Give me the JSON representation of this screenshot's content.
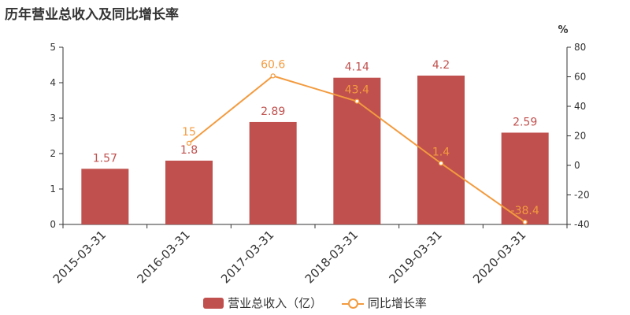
{
  "title": "历年营业总收入及同比增长率",
  "legend": {
    "revenue": "营业总收入（亿）",
    "growth": "同比增长率"
  },
  "colors": {
    "bar": "#c0504d",
    "line": "#f39b3f",
    "axis": "#333333"
  },
  "chart_data": {
    "type": "bar",
    "title": "历年营业总收入及同比增长率",
    "categories": [
      "2015-03-31",
      "2016-03-31",
      "2017-03-31",
      "2018-03-31",
      "2019-03-31",
      "2020-03-31"
    ],
    "series": [
      {
        "name": "营业总收入（亿）",
        "type": "bar",
        "axis": "left",
        "values": [
          1.57,
          1.8,
          2.89,
          4.14,
          4.2,
          2.59
        ]
      },
      {
        "name": "同比增长率",
        "type": "line",
        "axis": "right",
        "values": [
          null,
          15,
          60.6,
          43.4,
          1.4,
          -38.4
        ]
      }
    ],
    "y_left": {
      "lim": [
        0,
        5
      ],
      "ticks": [
        0,
        1,
        2,
        3,
        4,
        5
      ]
    },
    "y_right": {
      "label": "%",
      "lim": [
        -40,
        80
      ],
      "ticks": [
        -40,
        -20,
        0,
        20,
        40,
        60,
        80
      ]
    },
    "grid": false,
    "legend_position": "bottom"
  }
}
